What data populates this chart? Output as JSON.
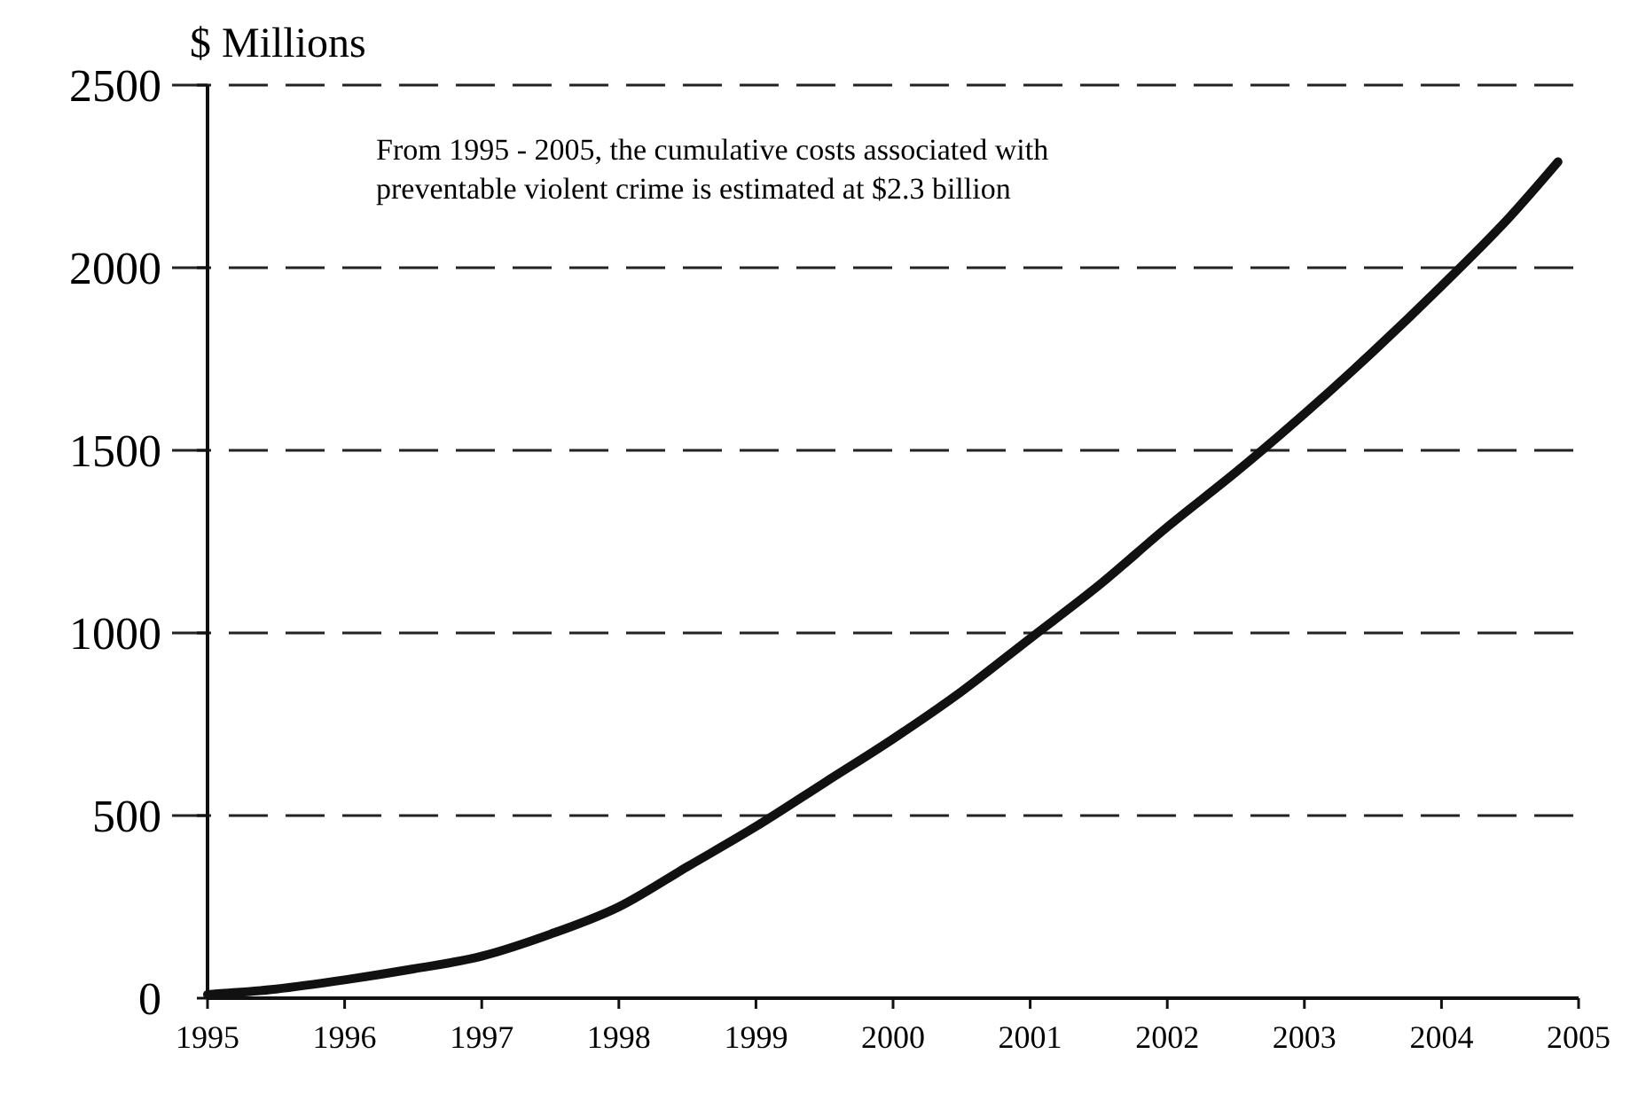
{
  "chart_data": {
    "type": "line",
    "ylabel": "$ Millions",
    "annotations": [
      "From 1995 - 2005, the cumulative costs associated with\npreventable violent crime is estimated at $2.3 billion"
    ],
    "x": [
      1995,
      1995.5,
      1996,
      1996.5,
      1997,
      1997.5,
      1998,
      1998.5,
      1999,
      1999.5,
      2000,
      2000.5,
      2001,
      2001.5,
      2002,
      2002.5,
      2003,
      2003.5,
      2004,
      2004.5,
      2004.85
    ],
    "series": [
      {
        "color": "#111111",
        "values": [
          10,
          25,
          50,
          80,
          115,
          175,
          250,
          360,
          470,
          590,
          710,
          840,
          985,
          1130,
          1290,
          1440,
          1600,
          1770,
          1950,
          2140,
          2290
        ]
      }
    ],
    "xlim": [
      1995,
      2005
    ],
    "xticks": [
      1995,
      1996,
      1997,
      1998,
      1999,
      2000,
      2001,
      2002,
      2003,
      2004,
      2005
    ],
    "ylim": [
      0,
      2500
    ],
    "yticks": [
      0,
      500,
      1000,
      1500,
      2000,
      2500
    ],
    "grid": "y",
    "marker": "none",
    "line_style": "solid"
  }
}
